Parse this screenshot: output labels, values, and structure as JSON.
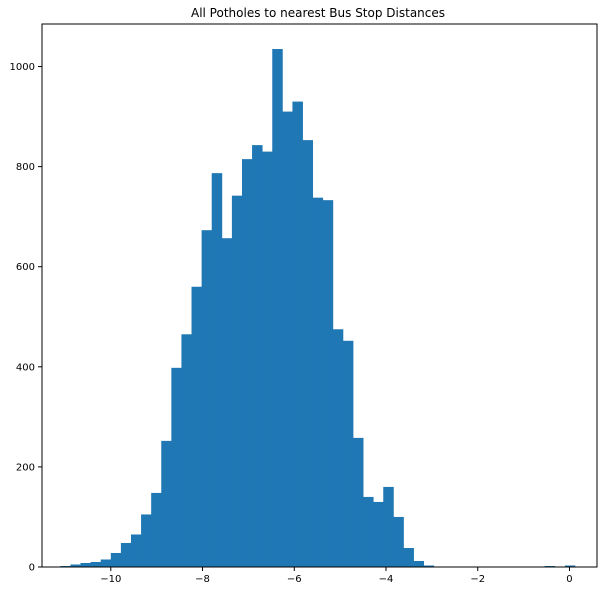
{
  "chart_data": {
    "type": "bar",
    "title": "All Potholes to nearest Bus Stop Distances",
    "xlabel": "",
    "ylabel": "",
    "xlim": [
      -11.5,
      0.6
    ],
    "ylim": [
      0,
      1085
    ],
    "grid": false,
    "legend": "none",
    "bar_color": "#1f77b4",
    "x_ticks": [
      -10,
      -8,
      -6,
      -4,
      -2,
      0
    ],
    "x_tick_labels": [
      "−10",
      "−8",
      "−6",
      "−4",
      "−2",
      "0"
    ],
    "y_ticks": [
      0,
      200,
      400,
      600,
      800,
      1000
    ],
    "y_tick_labels": [
      "0",
      "200",
      "400",
      "600",
      "800",
      "1000"
    ],
    "bin_edges": [
      -11.1,
      -10.88,
      -10.66,
      -10.44,
      -10.22,
      -10.0,
      -9.78,
      -9.56,
      -9.34,
      -9.12,
      -8.9,
      -8.68,
      -8.46,
      -8.24,
      -8.02,
      -7.8,
      -7.58,
      -7.36,
      -7.14,
      -6.92,
      -6.7,
      -6.48,
      -6.26,
      -6.04,
      -5.82,
      -5.6,
      -5.38,
      -5.16,
      -4.94,
      -4.72,
      -4.5,
      -4.28,
      -4.06,
      -3.84,
      -3.62,
      -3.4,
      -3.18,
      -2.96,
      -2.74,
      -2.52,
      -2.3,
      -2.08,
      -1.86,
      -1.64,
      -1.42,
      -1.2,
      -0.98,
      -0.76,
      -0.54,
      -0.32,
      -0.1,
      0.12
    ],
    "counts": [
      2,
      5,
      8,
      10,
      15,
      28,
      48,
      65,
      105,
      148,
      252,
      398,
      465,
      560,
      673,
      787,
      657,
      742,
      815,
      843,
      830,
      1035,
      910,
      930,
      853,
      738,
      733,
      475,
      452,
      258,
      140,
      130,
      160,
      100,
      38,
      12,
      3,
      0,
      0,
      0,
      0,
      0,
      0,
      0,
      0,
      0,
      0,
      0,
      2,
      0,
      3
    ]
  }
}
